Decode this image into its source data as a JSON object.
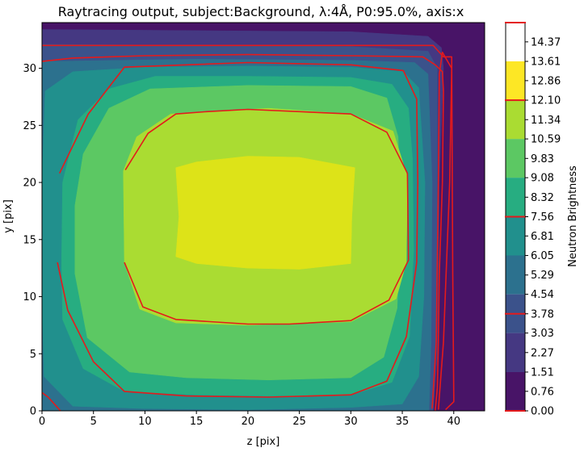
{
  "chart_data": {
    "type": "contour",
    "title": "Raytracing output, subject:Background, λ:4Å, P0:95.0%, axis:x",
    "xlabel": "z [pix]",
    "ylabel": "y [pix]",
    "xlim": [
      0,
      43
    ],
    "ylim": [
      0,
      34
    ],
    "xticks": [
      0,
      5,
      10,
      15,
      20,
      25,
      30,
      35,
      40
    ],
    "yticks": [
      0,
      5,
      10,
      15,
      20,
      25,
      30
    ],
    "colorbar": {
      "label": "Neutron Brightness",
      "range": [
        0,
        15.12
      ],
      "tick_labels": [
        "0.00",
        "0.76",
        "1.51",
        "2.27",
        "3.03",
        "3.78",
        "4.54",
        "5.29",
        "6.05",
        "6.81",
        "7.56",
        "8.32",
        "9.08",
        "9.83",
        "10.59",
        "11.34",
        "12.10",
        "12.86",
        "13.61",
        "14.37"
      ],
      "band_edges": [
        0,
        1.51,
        3.03,
        4.54,
        6.05,
        7.56,
        9.08,
        10.59,
        12.1,
        13.61,
        15.12
      ],
      "band_colors": [
        "#481467",
        "#453882",
        "#3b528b",
        "#2c718e",
        "#21908d",
        "#27ad81",
        "#5cc863",
        "#aadc32",
        "#fde725"
      ],
      "red_marks": [
        0,
        3.78,
        7.56,
        12.1,
        15.12
      ]
    },
    "filled_regions": [
      {
        "level": 0.76,
        "color": "#481467",
        "points": [
          [
            0,
            0
          ],
          [
            43,
            0
          ],
          [
            43,
            34
          ],
          [
            0,
            34
          ]
        ]
      },
      {
        "level": 2.27,
        "color": "#453882",
        "points": [
          [
            0,
            0
          ],
          [
            38,
            0
          ],
          [
            38.5,
            6
          ],
          [
            38.6,
            20
          ],
          [
            39,
            30
          ],
          [
            38.8,
            31.8
          ],
          [
            37.5,
            32.8
          ],
          [
            30,
            33.2
          ],
          [
            15,
            33.3
          ],
          [
            0,
            33.4
          ]
        ]
      },
      {
        "level": 3.78,
        "color": "#3b528b",
        "points": [
          [
            0,
            0
          ],
          [
            38,
            0
          ],
          [
            38.3,
            6
          ],
          [
            38.4,
            20
          ],
          [
            38.4,
            30
          ],
          [
            37.5,
            31.5
          ],
          [
            30,
            31.9
          ],
          [
            15,
            32
          ],
          [
            0,
            32.1
          ]
        ]
      },
      {
        "level": 5.29,
        "color": "#2c718e",
        "points": [
          [
            0,
            0
          ],
          [
            37.6,
            0
          ],
          [
            37.8,
            6
          ],
          [
            37.9,
            20
          ],
          [
            37.5,
            29.5
          ],
          [
            36.2,
            30.5
          ],
          [
            30,
            30.7
          ],
          [
            15,
            30.8
          ],
          [
            0,
            30.6
          ]
        ]
      },
      {
        "level": 6.81,
        "color": "#21908d",
        "points": [
          [
            0.2,
            3
          ],
          [
            3,
            0.4
          ],
          [
            10,
            0.2
          ],
          [
            20,
            0.1
          ],
          [
            30,
            0.3
          ],
          [
            35,
            0.6
          ],
          [
            36.6,
            3
          ],
          [
            37.1,
            10
          ],
          [
            37.2,
            20
          ],
          [
            36.6,
            28.3
          ],
          [
            35.1,
            29.7
          ],
          [
            30,
            30.1
          ],
          [
            20,
            30.2
          ],
          [
            10,
            30.1
          ],
          [
            3,
            29.7
          ],
          [
            0.3,
            28
          ],
          [
            0,
            20
          ],
          [
            0,
            10
          ]
        ]
      },
      {
        "level": 8.32,
        "color": "#27ad81",
        "points": [
          [
            2,
            8
          ],
          [
            4,
            3.7
          ],
          [
            8,
            1.7
          ],
          [
            15,
            1.4
          ],
          [
            22,
            1.3
          ],
          [
            30,
            1.4
          ],
          [
            34,
            2.5
          ],
          [
            35.7,
            6.5
          ],
          [
            36.1,
            14
          ],
          [
            36,
            22
          ],
          [
            35.6,
            26.5
          ],
          [
            34,
            28.6
          ],
          [
            30,
            29.2
          ],
          [
            20,
            29.3
          ],
          [
            11,
            29.3
          ],
          [
            6.5,
            28.2
          ],
          [
            3.5,
            25.5
          ],
          [
            2,
            20
          ],
          [
            1.9,
            13
          ]
        ]
      },
      {
        "level": 9.83,
        "color": "#5cc863",
        "points": [
          [
            3.2,
            12
          ],
          [
            4.4,
            6.4
          ],
          [
            8.5,
            3.4
          ],
          [
            14,
            2.9
          ],
          [
            22,
            2.7
          ],
          [
            30,
            2.9
          ],
          [
            33.2,
            4.7
          ],
          [
            34.5,
            9
          ],
          [
            34.8,
            17
          ],
          [
            34.6,
            24
          ],
          [
            33.5,
            27.4
          ],
          [
            30,
            28.4
          ],
          [
            20,
            28.5
          ],
          [
            10.5,
            28.2
          ],
          [
            6.5,
            26.5
          ],
          [
            4,
            22.5
          ],
          [
            3.2,
            18
          ]
        ]
      },
      {
        "level": 11.34,
        "color": "#aadc32",
        "points": [
          [
            8,
            13
          ],
          [
            9.5,
            8.9
          ],
          [
            13,
            7.7
          ],
          [
            20,
            7.5
          ],
          [
            30,
            7.8
          ],
          [
            34.4,
            9.8
          ],
          [
            35.4,
            13
          ],
          [
            35.5,
            20.5
          ],
          [
            34.1,
            24.5
          ],
          [
            30,
            26
          ],
          [
            22,
            26.5
          ],
          [
            12.5,
            26
          ],
          [
            9.2,
            24
          ],
          [
            7.9,
            21
          ]
        ]
      },
      {
        "level": 14.37,
        "color": "#dde318",
        "points": [
          [
            13,
            13.5
          ],
          [
            15,
            12.9
          ],
          [
            20,
            12.5
          ],
          [
            25,
            12.4
          ],
          [
            30,
            12.9
          ],
          [
            30.1,
            17
          ],
          [
            30.4,
            21.3
          ],
          [
            25,
            22.2
          ],
          [
            20,
            22.3
          ],
          [
            15,
            21.8
          ],
          [
            13,
            21.3
          ],
          [
            13.3,
            17
          ]
        ]
      }
    ],
    "contour_lines": [
      {
        "level": 3.78,
        "color": "#e41a1c",
        "points": [
          [
            0,
            32
          ],
          [
            38,
            32
          ],
          [
            39,
            31
          ],
          [
            39.8,
            31
          ],
          [
            39.9,
            12
          ],
          [
            40,
            1
          ],
          [
            40,
            0.8
          ],
          [
            39.2,
            0.1
          ]
        ]
      },
      {
        "level": 3.78,
        "color": "#e41a1c",
        "points": [
          [
            0,
            1.6
          ],
          [
            0.6,
            1.2
          ],
          [
            1.4,
            0.4
          ],
          [
            1.8,
            0
          ]
        ]
      },
      {
        "level": 7.56,
        "color": "#e41a1c",
        "points": [
          [
            0,
            30.6
          ],
          [
            3,
            30.9
          ],
          [
            10,
            31.1
          ],
          [
            20,
            31.2
          ],
          [
            30,
            31.1
          ],
          [
            37,
            31
          ],
          [
            38.2,
            30.3
          ],
          [
            38.9,
            29.7
          ],
          [
            39,
            28
          ],
          [
            38.9,
            20
          ],
          [
            38.6,
            12
          ],
          [
            38.5,
            6
          ],
          [
            38.4,
            2
          ],
          [
            38.2,
            0
          ]
        ]
      },
      {
        "level": 12.1,
        "color": "#e41a1c",
        "points": [
          [
            1.5,
            13
          ],
          [
            2.5,
            8.8
          ],
          [
            5,
            4.3
          ],
          [
            8,
            1.7
          ],
          [
            14,
            1.3
          ],
          [
            22,
            1.2
          ],
          [
            30,
            1.4
          ],
          [
            33.5,
            2.6
          ],
          [
            35.4,
            6.5
          ],
          [
            36.4,
            13
          ],
          [
            36.5,
            20
          ],
          [
            36.4,
            27.3
          ],
          [
            35.1,
            29.8
          ],
          [
            30,
            30.3
          ],
          [
            20,
            30.5
          ],
          [
            8,
            30.1
          ],
          [
            4.5,
            26
          ],
          [
            1.7,
            20.8
          ]
        ]
      },
      {
        "level": 12.1,
        "color": "#e41a1c",
        "points": [
          [
            8,
            13
          ],
          [
            9.8,
            9.1
          ],
          [
            13,
            8
          ],
          [
            20,
            7.6
          ],
          [
            24,
            7.6
          ],
          [
            30,
            7.9
          ],
          [
            33.7,
            9.7
          ],
          [
            35.6,
            13.2
          ],
          [
            35.5,
            20.8
          ],
          [
            33.5,
            24.4
          ],
          [
            30,
            26
          ],
          [
            20,
            26.4
          ],
          [
            16,
            26.2
          ],
          [
            13,
            26
          ],
          [
            10.3,
            24.3
          ],
          [
            8.1,
            21.1
          ]
        ]
      },
      {
        "level": 15.12,
        "color": "#e41a1c",
        "points": [
          [
            38.5,
            0.1
          ],
          [
            39,
            6
          ],
          [
            39.6,
            20
          ],
          [
            39.8,
            30
          ],
          [
            38.9,
            31.4
          ],
          [
            38.6,
            29.5
          ],
          [
            38.5,
            20
          ],
          [
            38.3,
            6
          ],
          [
            37.9,
            0.2
          ]
        ]
      }
    ]
  }
}
